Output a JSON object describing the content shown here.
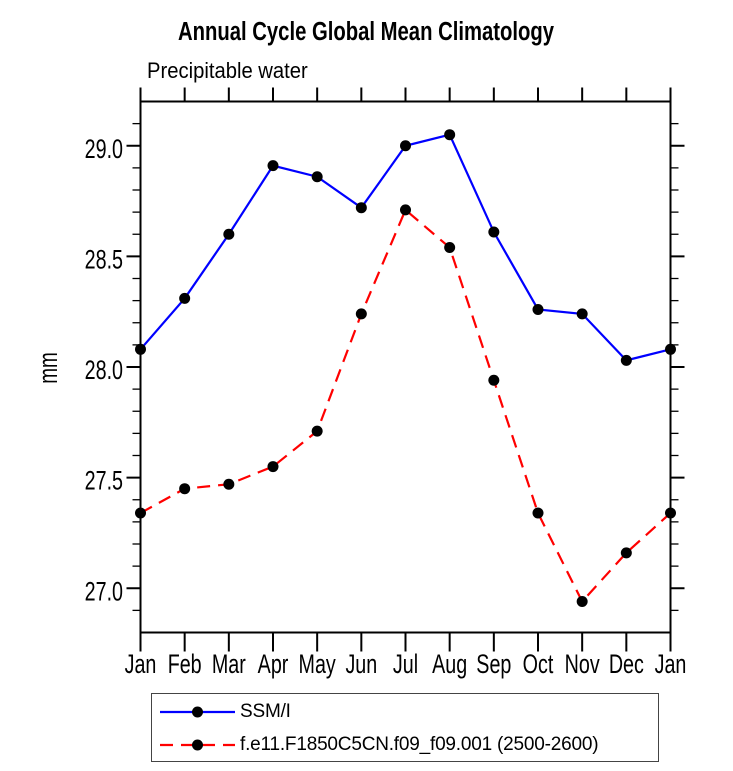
{
  "chart_data": {
    "type": "line",
    "title": "Annual Cycle Global Mean Climatology",
    "subtitle": "Precipitable water",
    "xlabel": "",
    "ylabel": "mm",
    "categories": [
      "Jan",
      "Feb",
      "Mar",
      "Apr",
      "May",
      "Jun",
      "Jul",
      "Aug",
      "Sep",
      "Oct",
      "Nov",
      "Dec",
      "Jan"
    ],
    "series": [
      {
        "name": "SSM/I",
        "color": "#0000ff",
        "line_style": "solid",
        "marker": "filled-circle",
        "marker_color": "#000000",
        "values": [
          28.08,
          28.31,
          28.6,
          28.91,
          28.86,
          28.72,
          29.0,
          29.05,
          28.61,
          28.26,
          28.24,
          28.03,
          28.08
        ]
      },
      {
        "name": "f.e11.F1850C5CN.f09_f09.001 (2500-2600)",
        "color": "#ff0000",
        "line_style": "dashed",
        "marker": "filled-circle",
        "marker_color": "#000000",
        "values": [
          27.34,
          27.45,
          27.47,
          27.55,
          27.71,
          28.24,
          28.71,
          28.54,
          27.94,
          27.34,
          26.94,
          27.16,
          27.34
        ]
      }
    ],
    "ylim": [
      26.8,
      29.2
    ],
    "y_major_ticks": [
      27.0,
      27.5,
      28.0,
      28.5,
      29.0
    ],
    "y_tick_labels": [
      "27.0",
      "27.5",
      "28.0",
      "28.5",
      "29.0"
    ],
    "y_minor_step": 0.1,
    "x_ticks_every_month": true,
    "grid": false,
    "legend_position": "bottom-left",
    "colors": {
      "axis": "#000000",
      "text": "#000000",
      "background": "#ffffff",
      "legend_border": "#444444"
    }
  }
}
